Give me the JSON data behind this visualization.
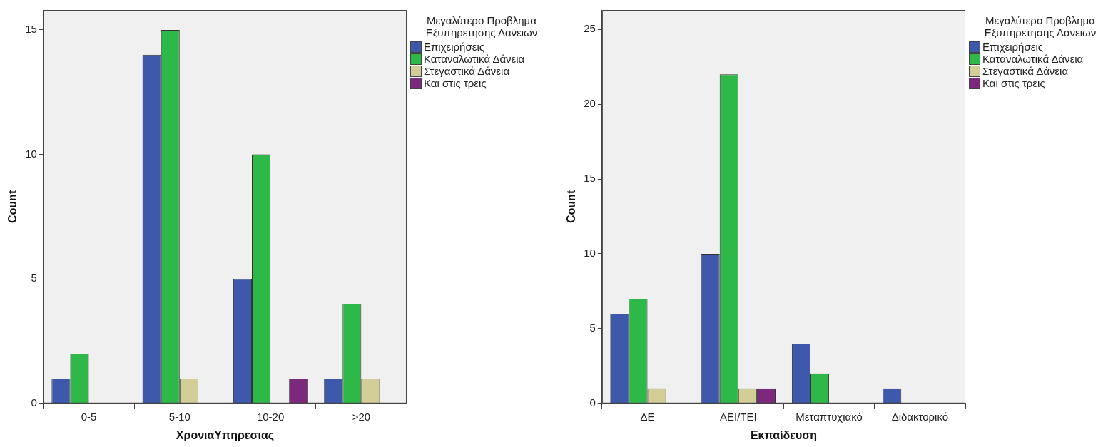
{
  "chart_data": [
    {
      "type": "bar",
      "xlabel": "ΧρονιαΥπηρεσιας",
      "ylabel": "Count",
      "legend_title": "Μεγαλύτερο Προβλημα Εξυπηρετησης Δανειων",
      "categories": [
        "0-5",
        "5-10",
        "10-20",
        ">20"
      ],
      "series": [
        {
          "name": "Επιχειρήσεις",
          "color": "#3e58ac",
          "values": [
            1,
            14,
            5,
            1
          ]
        },
        {
          "name": "Καταναλωτικά Δάνεια",
          "color": "#2eb848",
          "values": [
            2,
            15,
            10,
            4
          ]
        },
        {
          "name": "Στεγαστικά Δάνεια",
          "color": "#d3ce97",
          "values": [
            0,
            1,
            0,
            1
          ]
        },
        {
          "name": "Και στις τρεις",
          "color": "#7c287d",
          "values": [
            0,
            0,
            1,
            0
          ]
        }
      ],
      "ylim": [
        0,
        15.8
      ],
      "yticks": [
        0,
        5,
        10,
        15
      ],
      "grid": false,
      "legend": "right"
    },
    {
      "type": "bar",
      "xlabel": "Εκπαίδευση",
      "ylabel": "Count",
      "legend_title": "Μεγαλύτερο Προβλημα Εξυπηρετησης Δανειων",
      "categories": [
        "ΔΕ",
        "ΑΕΙ/ΤΕΙ",
        "Μεταπτυχιακό",
        "Διδακτορικό"
      ],
      "series": [
        {
          "name": "Επιχειρήσεις",
          "color": "#3e58ac",
          "values": [
            6,
            10,
            4,
            1
          ]
        },
        {
          "name": "Καταναλωτικά Δάνεια",
          "color": "#2eb848",
          "values": [
            7,
            22,
            2,
            0
          ]
        },
        {
          "name": "Στεγαστικά Δάνεια",
          "color": "#d3ce97",
          "values": [
            1,
            1,
            0,
            0
          ]
        },
        {
          "name": "Και στις τρεις",
          "color": "#7c287d",
          "values": [
            0,
            1,
            0,
            0
          ]
        }
      ],
      "ylim": [
        0,
        26.3
      ],
      "yticks": [
        0,
        5,
        10,
        15,
        20,
        25
      ],
      "grid": false,
      "legend": "right"
    }
  ]
}
